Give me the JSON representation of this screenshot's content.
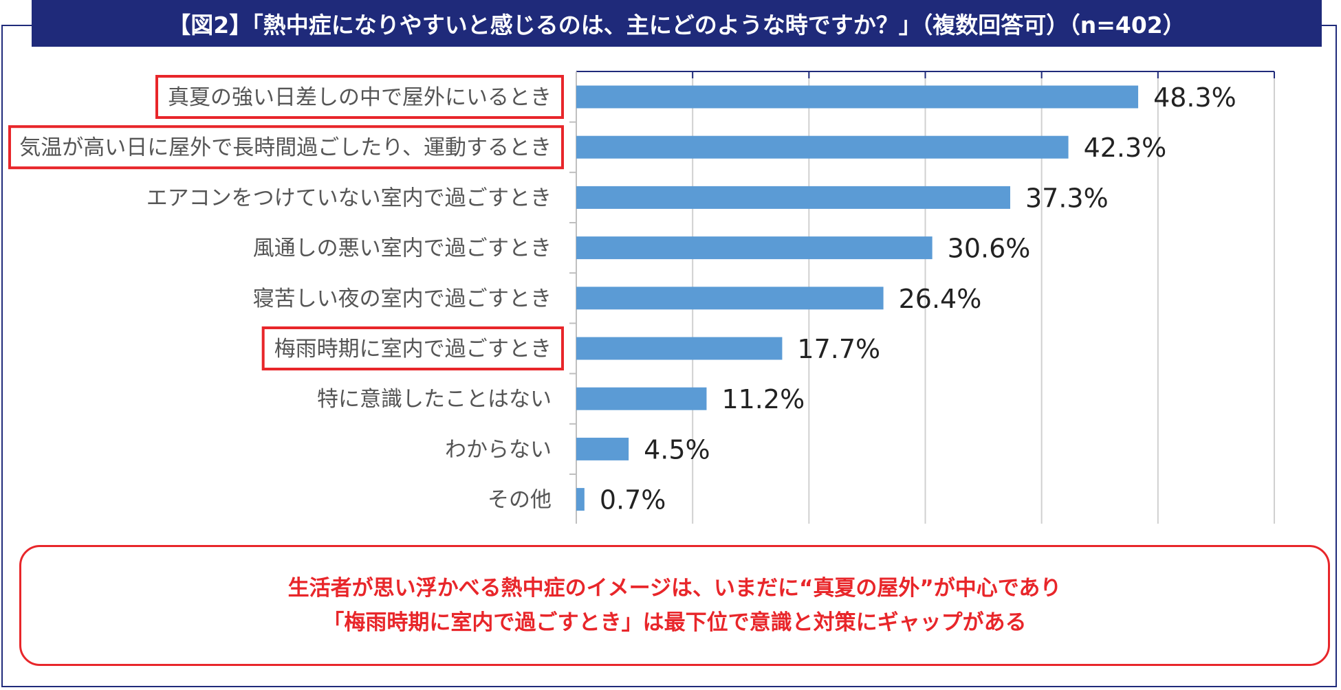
{
  "title": "【図2】「熱中症になりやすいと感じるのは、主にどのような時ですか？」（複数回答可）（n=402）",
  "colors": {
    "bar": "#5b9bd5",
    "highlight": "#e8262a",
    "title_bg": "#1f2a7a"
  },
  "chart_data": {
    "type": "bar",
    "orientation": "horizontal",
    "categories": [
      "真夏の強い日差しの中で屋外にいるとき",
      "気温が高い日に屋外で長時間過ごしたり、運動するとき",
      "エアコンをつけていない室内で過ごすとき",
      "風通しの悪い室内で過ごすとき",
      "寝苦しい夜の室内で過ごすとき",
      "梅雨時期に室内で過ごすとき",
      "特に意識したことはない",
      "わからない",
      "その他"
    ],
    "values": [
      48.3,
      42.3,
      37.3,
      30.6,
      26.4,
      17.7,
      11.2,
      4.5,
      0.7
    ],
    "value_labels": [
      "48.3%",
      "42.3%",
      "37.3%",
      "30.6%",
      "26.4%",
      "17.7%",
      "11.2%",
      "4.5%",
      "0.7%"
    ],
    "highlighted": [
      0,
      1,
      5
    ],
    "xlim": [
      0,
      60
    ],
    "grid": true
  },
  "conclusion": {
    "line1": "生活者が思い浮かべる熱中症のイメージは、いまだに“真夏の屋外”が中心であり",
    "line2": "「梅雨時期に室内で過ごすとき」は最下位で意識と対策にギャップがある"
  }
}
